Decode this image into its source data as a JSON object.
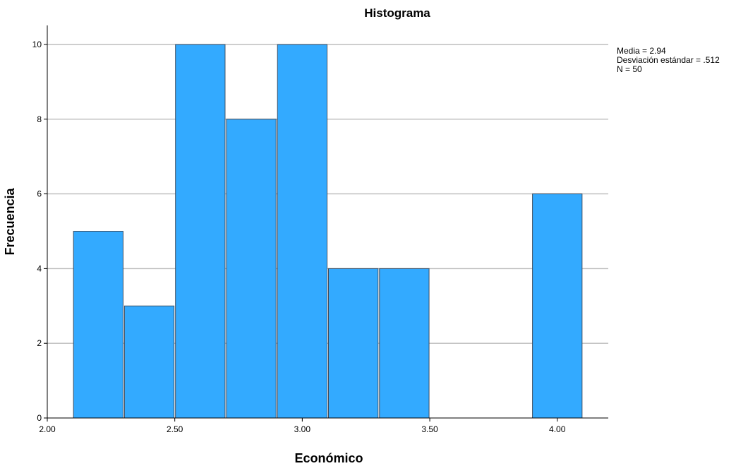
{
  "chart_data": {
    "type": "bar",
    "title": "Histograma",
    "xlabel": "Económico",
    "ylabel": "Frecuencia",
    "bins": [
      {
        "start": 2.1,
        "end": 2.3,
        "value": 5
      },
      {
        "start": 2.3,
        "end": 2.5,
        "value": 3
      },
      {
        "start": 2.5,
        "end": 2.7,
        "value": 10
      },
      {
        "start": 2.7,
        "end": 2.9,
        "value": 8
      },
      {
        "start": 2.9,
        "end": 3.1,
        "value": 10
      },
      {
        "start": 3.1,
        "end": 3.3,
        "value": 4
      },
      {
        "start": 3.3,
        "end": 3.5,
        "value": 4
      },
      {
        "start": 3.9,
        "end": 4.1,
        "value": 6
      }
    ],
    "xlim": [
      2.0,
      4.2
    ],
    "ylim": [
      0,
      10.5
    ],
    "x_ticks": [
      {
        "value": 2.0,
        "label": "2.00"
      },
      {
        "value": 2.5,
        "label": "2.50"
      },
      {
        "value": 3.0,
        "label": "3.00"
      },
      {
        "value": 3.5,
        "label": "3.50"
      },
      {
        "value": 4.0,
        "label": "4.00"
      }
    ],
    "y_ticks": [
      {
        "value": 0,
        "label": "0"
      },
      {
        "value": 2,
        "label": "2"
      },
      {
        "value": 4,
        "label": "4"
      },
      {
        "value": 6,
        "label": "6"
      },
      {
        "value": 8,
        "label": "8"
      },
      {
        "value": 10,
        "label": "10"
      }
    ],
    "grid": "horizontal",
    "bar_color": "#33aaff",
    "bar_edge_color": "#3d4f63",
    "grid_color": "#bdbdbd",
    "stats": {
      "media": "Media = 2.94",
      "desviacion": "Desviación estándar = .512",
      "n": "N = 50"
    }
  }
}
